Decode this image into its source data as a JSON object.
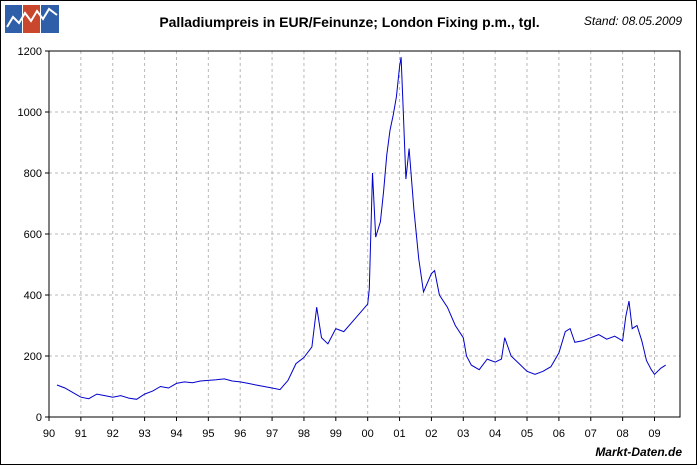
{
  "header": {
    "title": "Palladiumpreis in EUR/Feinunze; London Fixing p.m., tgl.",
    "stand": "Stand: 08.05.2009"
  },
  "footer": {
    "source": "Markt-Daten.de"
  },
  "logo": {
    "icon": "chart-logo-icon",
    "colors": [
      "#2e5fa8",
      "#c8472d",
      "#2e5fa8"
    ]
  },
  "chart_data": {
    "type": "line",
    "title": "Palladiumpreis in EUR/Feinunze; London Fixing p.m., tgl.",
    "xlabel": "",
    "ylabel": "",
    "xlim": [
      1990,
      2009.8
    ],
    "ylim": [
      0,
      1200
    ],
    "grid": true,
    "line_color": "#0000cc",
    "x_tick_labels": [
      "90",
      "91",
      "92",
      "93",
      "94",
      "95",
      "96",
      "97",
      "98",
      "99",
      "00",
      "01",
      "02",
      "03",
      "04",
      "05",
      "06",
      "07",
      "08",
      "09"
    ],
    "y_ticks": [
      0,
      200,
      400,
      600,
      800,
      1000,
      1200
    ],
    "series": [
      {
        "x": [
          1990.25,
          1990.5,
          1990.75,
          1991.0,
          1991.25,
          1991.5,
          1991.75,
          1992.0,
          1992.25,
          1992.5,
          1992.75,
          1993.0,
          1993.25,
          1993.5,
          1993.75,
          1994.0,
          1994.25,
          1994.5,
          1994.75,
          1995.0,
          1995.25,
          1995.5,
          1995.75,
          1996.0,
          1996.25,
          1996.5,
          1996.75,
          1997.0,
          1997.25,
          1997.5,
          1997.75,
          1998.0,
          1998.25,
          1998.4,
          1998.55,
          1998.75,
          1999.0,
          1999.25,
          1999.5,
          1999.75,
          2000.0,
          2000.05,
          2000.15,
          2000.25,
          2000.4,
          2000.5,
          2000.6,
          2000.7,
          2000.8,
          2000.9,
          2001.0,
          2001.05,
          2001.1,
          2001.2,
          2001.3,
          2001.45,
          2001.6,
          2001.75,
          2002.0,
          2002.1,
          2002.25,
          2002.5,
          2002.75,
          2003.0,
          2003.1,
          2003.25,
          2003.5,
          2003.75,
          2004.0,
          2004.2,
          2004.3,
          2004.5,
          2004.75,
          2005.0,
          2005.25,
          2005.5,
          2005.75,
          2006.0,
          2006.2,
          2006.35,
          2006.5,
          2006.75,
          2007.0,
          2007.25,
          2007.5,
          2007.75,
          2008.0,
          2008.1,
          2008.2,
          2008.3,
          2008.45,
          2008.6,
          2008.75,
          2008.9,
          2009.0,
          2009.2,
          2009.35
        ],
        "y": [
          105,
          95,
          80,
          65,
          60,
          75,
          70,
          65,
          70,
          62,
          58,
          75,
          85,
          100,
          95,
          110,
          115,
          112,
          118,
          120,
          122,
          125,
          118,
          115,
          110,
          105,
          100,
          95,
          90,
          120,
          175,
          195,
          230,
          360,
          260,
          240,
          290,
          280,
          310,
          340,
          370,
          420,
          800,
          590,
          640,
          740,
          860,
          940,
          990,
          1050,
          1150,
          1180,
          1050,
          780,
          880,
          680,
          520,
          410,
          470,
          480,
          400,
          360,
          300,
          260,
          200,
          170,
          155,
          190,
          180,
          190,
          260,
          200,
          175,
          150,
          140,
          150,
          165,
          210,
          280,
          290,
          245,
          250,
          260,
          270,
          255,
          265,
          250,
          330,
          380,
          290,
          300,
          250,
          185,
          155,
          140,
          160,
          170
        ]
      }
    ]
  }
}
